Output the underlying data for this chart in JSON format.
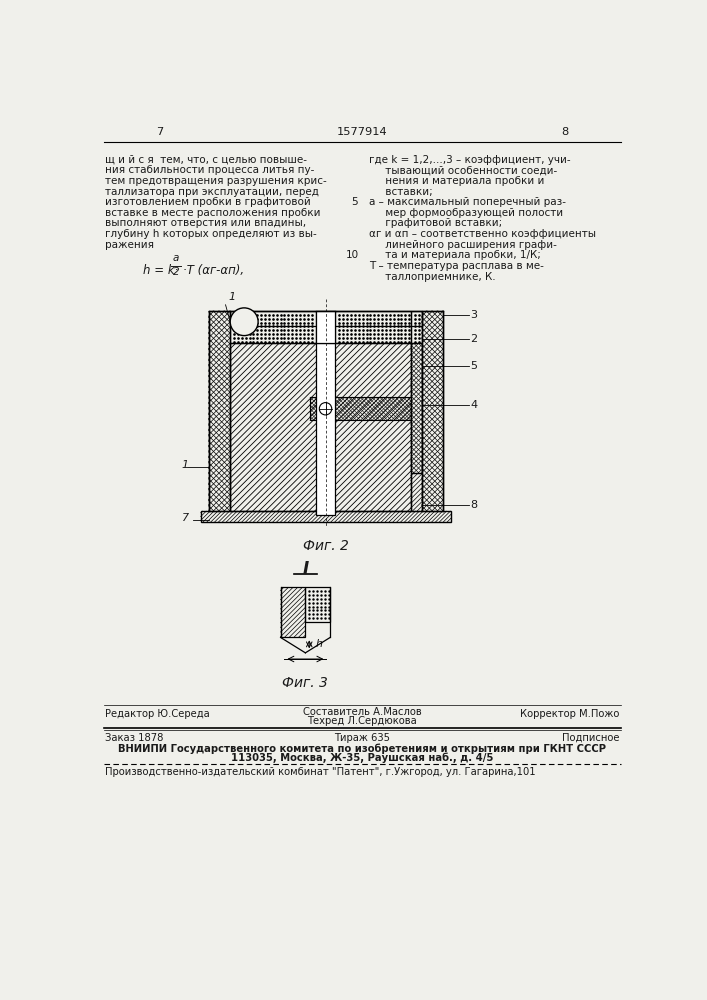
{
  "page_number_left": "7",
  "patent_number": "1577914",
  "page_number_right": "8",
  "left_text": [
    "щ и й с я  тем, что, с целью повыше-",
    "ния стабильности процесса литья пу-",
    "тем предотвращения разрушения крис-",
    "таллизатора при эксплуатации, перед",
    "изготовлением пробки в графитовой",
    "вставке в месте расположения пробки",
    "выполняют отверстия или впадины,",
    "глубину h которых определяют из вы-",
    "ражения"
  ],
  "right_text": [
    "где k = 1,2,...,3 – коэффициент, учи-",
    "     тывающий особенности соеди-",
    "     нения и материала пробки и",
    "     вставки;",
    "a – максимальный поперечный раз-",
    "     мер формообразующей полости",
    "     графитовой вставки;",
    "αг и αп – соответственно коэффициенты",
    "     линейного расширения графи-",
    "     та и материала пробки, 1/К;",
    "T – температура расплава в ме-",
    "     таллоприемнике, К."
  ],
  "line_num_5_row": 4,
  "line_num_10_row": 9,
  "formula": "h = k · ½ · T (αг-αп),",
  "fig2_label": "Фиг. 2",
  "fig3_label": "Фиг. 3",
  "fig_I_label": "I",
  "footer_line1_left": "Редактор Ю.Середа",
  "footer_line1_center_top": "Составитель А.Маслов",
  "footer_line1_center_bot": "Техред Л.Сердюкова",
  "footer_line1_right": "Корректор М.Пожо",
  "footer_line2_left": "Заказ 1878",
  "footer_line2_center": "Тираж 635",
  "footer_line2_right": "Подписное",
  "footer_line3": "ВНИИПИ Государственного комитета по изобретениям и открытиям при ГКНТ СССР",
  "footer_line4": "113035, Москва, Ж-35, Раушская наб., д. 4/5",
  "footer_line5": "Производственно-издательский комбинат \"Патент\", г.Ужгород, ул. Гагарина,101",
  "bg_color": "#f0f0eb",
  "text_color": "#1a1a1a",
  "fs_main": 7.5,
  "fs_header": 8.2,
  "fs_footer": 7.2,
  "fs_label": 7.0
}
